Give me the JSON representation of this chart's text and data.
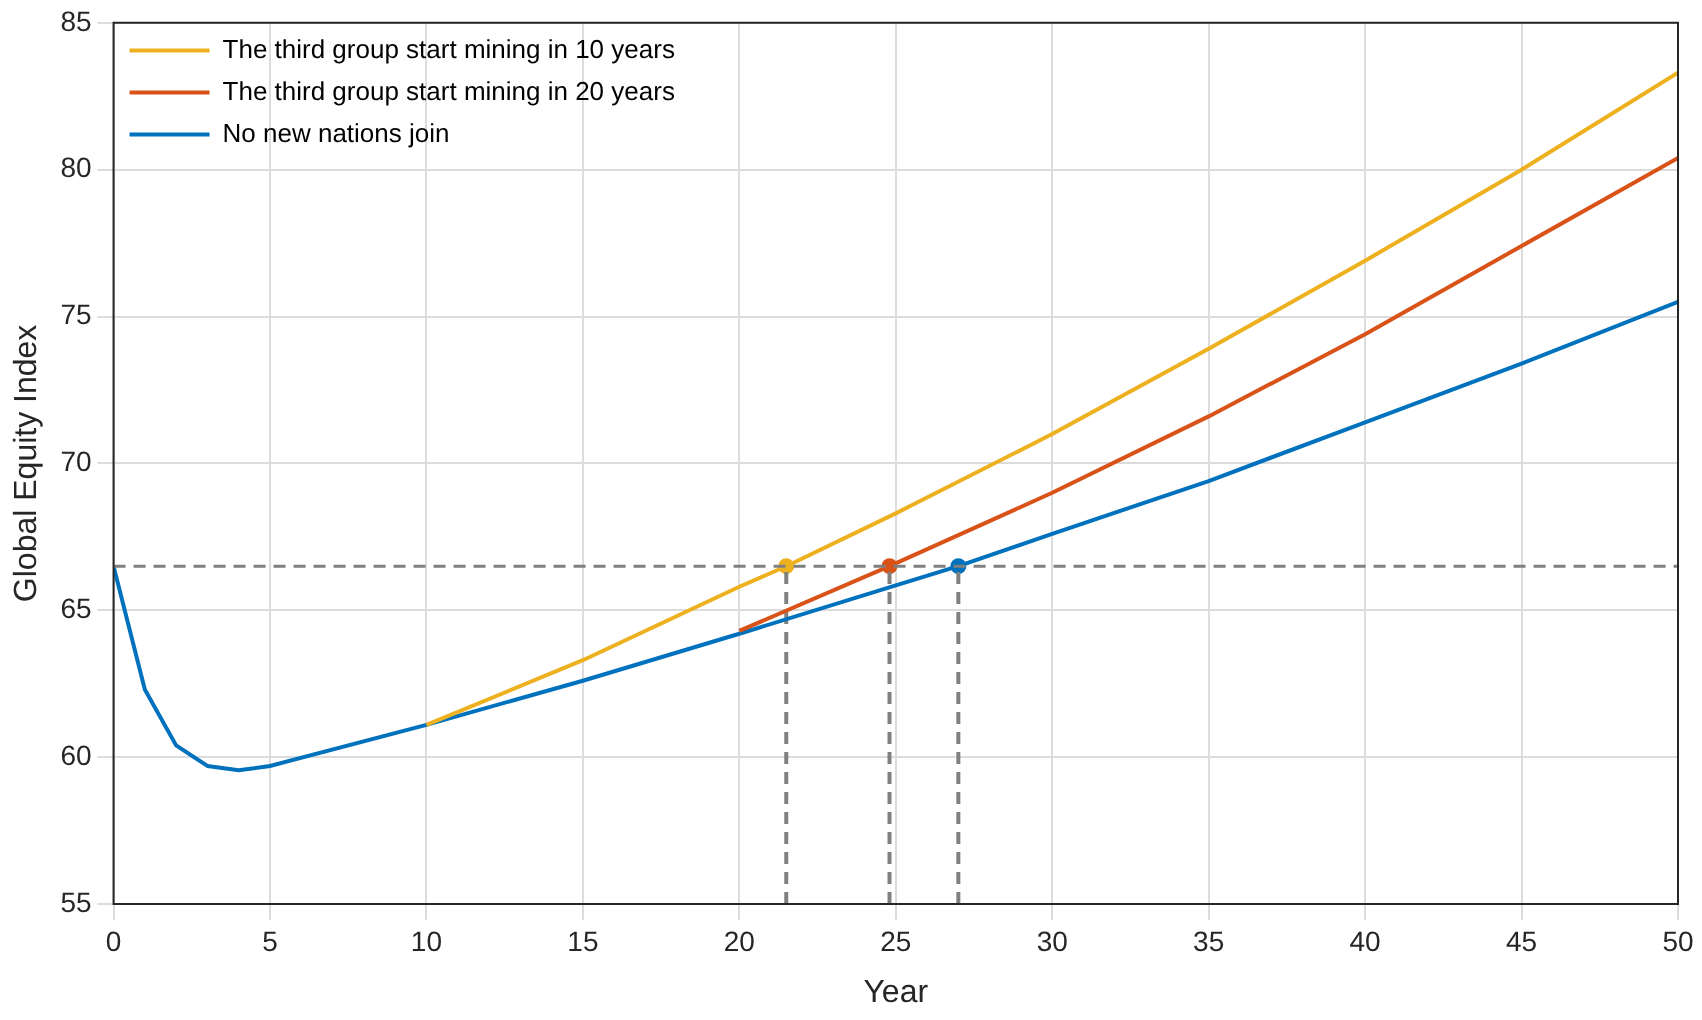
{
  "chart_data": {
    "type": "line",
    "xlabel": "Year",
    "ylabel": "Global Equity Index",
    "xlim": [
      0,
      50
    ],
    "ylim": [
      55,
      85
    ],
    "xticks": [
      0,
      5,
      10,
      15,
      20,
      25,
      30,
      35,
      40,
      45,
      50
    ],
    "yticks": [
      55,
      60,
      65,
      70,
      75,
      80,
      85
    ],
    "grid": true,
    "legend": "top left",
    "marker": "none",
    "line_style": "solid",
    "series": [
      {
        "name": "The third group start mining in 10 years",
        "color": "#edb120",
        "x": [
          10,
          15,
          20,
          21.5,
          25,
          30,
          35,
          40,
          45,
          50
        ],
        "values": [
          61.1,
          63.3,
          65.8,
          66.5,
          68.3,
          71.0,
          73.9,
          76.9,
          80.0,
          83.3
        ]
      },
      {
        "name": "The third group start mining in 20 years",
        "color": "#d95319",
        "x": [
          20,
          24.8,
          30,
          35,
          40,
          45,
          50
        ],
        "values": [
          64.3,
          66.5,
          69.0,
          71.6,
          74.4,
          77.4,
          80.4
        ]
      },
      {
        "name": "No new nations join",
        "color": "#0072bd",
        "x": [
          0,
          1,
          2,
          3,
          4,
          5,
          10,
          15,
          20,
          25,
          27,
          30,
          35,
          40,
          45,
          50
        ],
        "values": [
          66.5,
          62.3,
          60.4,
          59.7,
          59.55,
          59.7,
          61.1,
          62.6,
          64.2,
          65.85,
          66.5,
          67.6,
          69.4,
          71.4,
          73.4,
          75.5
        ]
      },
      {
        "type": "line",
        "line_style": "dashed",
        "color": "#808080",
        "x": [
          21.5,
          21.5
        ],
        "values": [
          55,
          66.5
        ]
      },
      {
        "type": "line",
        "line_style": "dashed",
        "color": "#808080",
        "x": [
          24.8,
          24.8
        ],
        "values": [
          55,
          66.5
        ]
      },
      {
        "type": "line",
        "line_style": "dashed",
        "color": "#808080",
        "x": [
          27,
          27
        ],
        "values": [
          55,
          66.5
        ]
      },
      {
        "type": "scatter",
        "marker": "circle",
        "color": "#edb120",
        "x": [
          21.5
        ],
        "values": [
          66.5
        ]
      },
      {
        "type": "scatter",
        "marker": "circle",
        "color": "#d95319",
        "x": [
          24.8
        ],
        "values": [
          66.5
        ]
      },
      {
        "type": "scatter",
        "marker": "circle",
        "color": "#0072bd",
        "x": [
          27
        ],
        "values": [
          66.5
        ]
      }
    ],
    "ref_lines": [
      {
        "axis": "y",
        "value": 66.5,
        "color": "#808080",
        "line_style": "dashed"
      }
    ]
  }
}
